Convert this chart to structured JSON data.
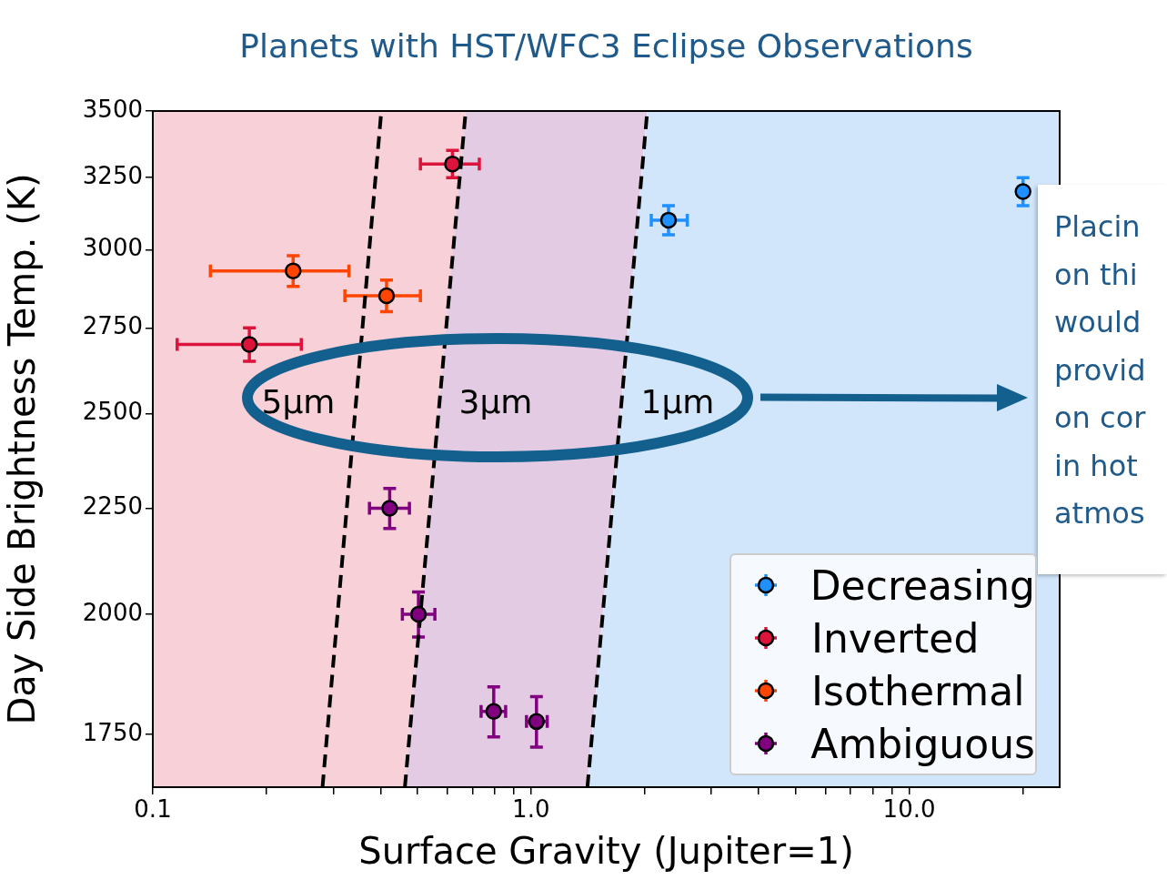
{
  "chart_data": {
    "type": "scatter",
    "title": "Planets with HST/WFC3 Eclipse Observations",
    "xlabel": "Surface Gravity (Jupiter=1)",
    "ylabel": "Day Side Brightness Temp. (K)",
    "log": "xy",
    "grid": false,
    "legend": "bottom right",
    "marker": "circle",
    "xlim": [
      0.1,
      25
    ],
    "ylim": [
      1650,
      3500
    ],
    "xticks": [
      {
        "value": 0.1,
        "label": "0.1"
      },
      {
        "value": 0.2,
        "label": null
      },
      {
        "value": 0.3,
        "label": null
      },
      {
        "value": 0.4,
        "label": null
      },
      {
        "value": 0.5,
        "label": null
      },
      {
        "value": 0.6,
        "label": null
      },
      {
        "value": 0.7,
        "label": null
      },
      {
        "value": 0.8,
        "label": null
      },
      {
        "value": 0.9,
        "label": null
      },
      {
        "value": 1,
        "label": "1.0"
      },
      {
        "value": 2,
        "label": null
      },
      {
        "value": 3,
        "label": null
      },
      {
        "value": 4,
        "label": null
      },
      {
        "value": 5,
        "label": null
      },
      {
        "value": 6,
        "label": null
      },
      {
        "value": 7,
        "label": null
      },
      {
        "value": 8,
        "label": null
      },
      {
        "value": 9,
        "label": null
      },
      {
        "value": 10,
        "label": "10.0"
      },
      {
        "value": 20,
        "label": null
      }
    ],
    "yticks": [
      1750,
      2000,
      2250,
      2500,
      2750,
      3000,
      3250,
      3500
    ],
    "series": [
      {
        "name": "Decreasing",
        "color": "#1e90ff",
        "x": [
          2.31,
          20
        ],
        "values": [
          3100,
          3200
        ],
        "errors": [
          [
            3050,
            3150
          ],
          [
            3150,
            3250
          ]
        ],
        "xerrors": [
          [
            2.08,
            2.59
          ],
          null
        ]
      },
      {
        "name": "Inverted",
        "color": "#dc143c",
        "x": [
          0.62,
          0.18
        ],
        "values": [
          3300,
          2700
        ],
        "errors": [
          [
            3250,
            3350
          ],
          [
            2650,
            2750
          ]
        ],
        "xerrors": [
          [
            0.51,
            0.73
          ],
          [
            0.116,
            0.247
          ]
        ]
      },
      {
        "name": "Isothermal",
        "color": "#ff4500",
        "x": [
          0.235,
          0.415
        ],
        "values": [
          2930,
          2850
        ],
        "errors": [
          [
            2880,
            2980
          ],
          [
            2800,
            2900
          ]
        ],
        "xerrors": [
          [
            0.142,
            0.33
          ],
          [
            0.322,
            0.51
          ]
        ]
      },
      {
        "name": "Ambiguous",
        "color": "#800080",
        "x": [
          0.423,
          0.504,
          0.797,
          1.034
        ],
        "values": [
          2250,
          2000,
          1795,
          1775
        ],
        "errors": [
          [
            2200,
            2300
          ],
          [
            1950,
            2050
          ],
          [
            1745,
            1845
          ],
          [
            1725,
            1825
          ]
        ],
        "xerrors": [
          [
            0.374,
            0.477
          ],
          [
            0.457,
            0.557
          ],
          [
            0.738,
            0.857
          ],
          [
            0.973,
            1.104
          ]
        ]
      },
      {
        "type": "line",
        "color": "#000000",
        "line_style": "dashed",
        "marker": "none",
        "x": [
          0.281,
          0.402
        ],
        "values": [
          1650,
          3500
        ]
      },
      {
        "type": "line",
        "color": "#000000",
        "line_style": "dashed",
        "marker": "none",
        "x": [
          0.464,
          0.672
        ],
        "values": [
          1650,
          3500
        ]
      },
      {
        "type": "line",
        "color": "#000000",
        "line_style": "dashed",
        "marker": "none",
        "x": [
          1.41,
          2.03
        ],
        "values": [
          1650,
          3500
        ]
      }
    ],
    "annotations": [
      "5µm",
      "3µm",
      "1µm",
      "Placin\non thi\nwould\nprovid\non cor\nin hot\natmos"
    ]
  }
}
